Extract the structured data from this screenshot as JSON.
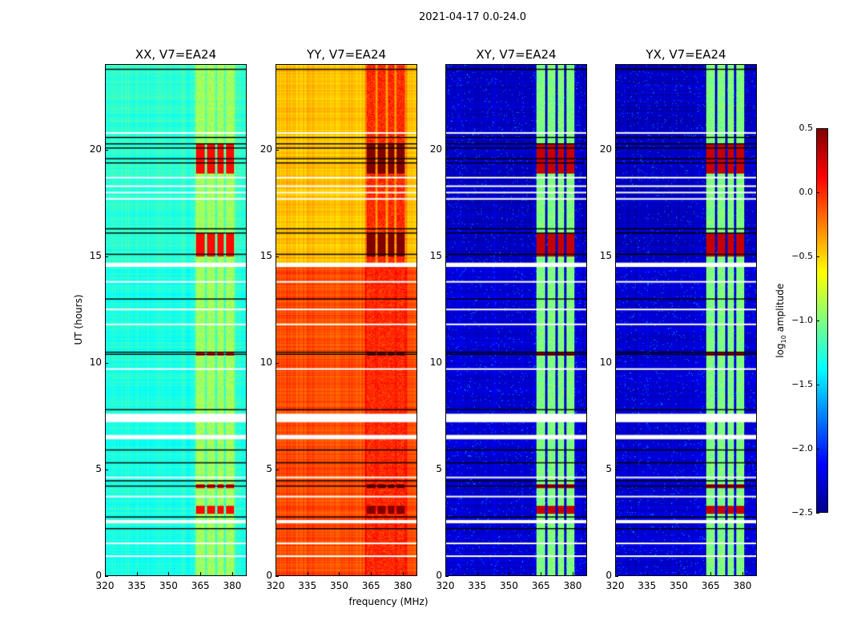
{
  "chart_data": {
    "type": "heatmap",
    "title": "2021-04-17 0.0-24.0",
    "xlabel": "frequency (MHz)",
    "ylabel": "UT (hours)",
    "xlim": [
      320,
      386.8
    ],
    "ylim": [
      0,
      24
    ],
    "xticks": [
      "320",
      "335",
      "350",
      "365",
      "380"
    ],
    "xtick_values": [
      320,
      335,
      350,
      365,
      380
    ],
    "yticks": [
      "0",
      "5",
      "10",
      "15",
      "20"
    ],
    "ytick_values": [
      0,
      5,
      10,
      15,
      20
    ],
    "colormap": "jet",
    "colorbar": {
      "label": "log10 amplitude",
      "label_main": "log",
      "label_sub": "10",
      "label_rest": " amplitude",
      "range": [
        -2.5,
        0.5
      ],
      "ticks": [
        "0.5",
        "0.0",
        "−0.5",
        "−1.0",
        "−1.5",
        "−2.0",
        "−2.5"
      ],
      "tick_values": [
        0.5,
        0.0,
        -0.5,
        -1.0,
        -1.5,
        -2.0,
        -2.5
      ]
    },
    "panels": [
      {
        "title": "XX, V7=EA24",
        "base_high": -1.25,
        "base_low": -1.3,
        "rfi_level": -0.9,
        "hot_level": 0.1
      },
      {
        "title": "YY, V7=EA24",
        "base_high": -0.45,
        "base_low": -0.1,
        "rfi_level": 0.0,
        "hot_level": 0.5
      },
      {
        "title": "XY, V7=EA24",
        "base_high": -2.3,
        "base_low": -2.25,
        "rfi_level": -1.0,
        "hot_level": 0.3
      },
      {
        "title": "YX, V7=EA24",
        "base_high": -2.3,
        "base_low": -2.25,
        "rfi_level": -1.0,
        "hot_level": 0.3
      }
    ],
    "rfi_channel_ranges_mhz": [
      [
        363,
        367
      ],
      [
        368,
        372
      ],
      [
        373,
        376
      ],
      [
        377,
        381
      ]
    ],
    "hot_time_ranges_h": [
      [
        15.0,
        16.1
      ],
      [
        18.9,
        20.3
      ],
      [
        10.35,
        10.55
      ],
      [
        4.1,
        4.3
      ],
      [
        2.9,
        3.3
      ]
    ],
    "flagged_white_h": [
      0.9,
      1.5,
      [
        2.45,
        2.6
      ],
      3.7,
      4.6,
      [
        6.4,
        6.6
      ],
      [
        7.2,
        7.6
      ],
      9.7,
      11.8,
      12.5,
      13.8,
      [
        14.5,
        14.7
      ],
      17.7,
      18.0,
      18.3,
      18.7,
      20.8
    ],
    "flagged_black_h": [
      2.2,
      2.75,
      4.2,
      4.45,
      5.3,
      5.9,
      7.8,
      10.4,
      10.5,
      13.0,
      15.1,
      16.1,
      16.3,
      19.4,
      19.6,
      20.1,
      20.3,
      20.6,
      23.8
    ]
  }
}
